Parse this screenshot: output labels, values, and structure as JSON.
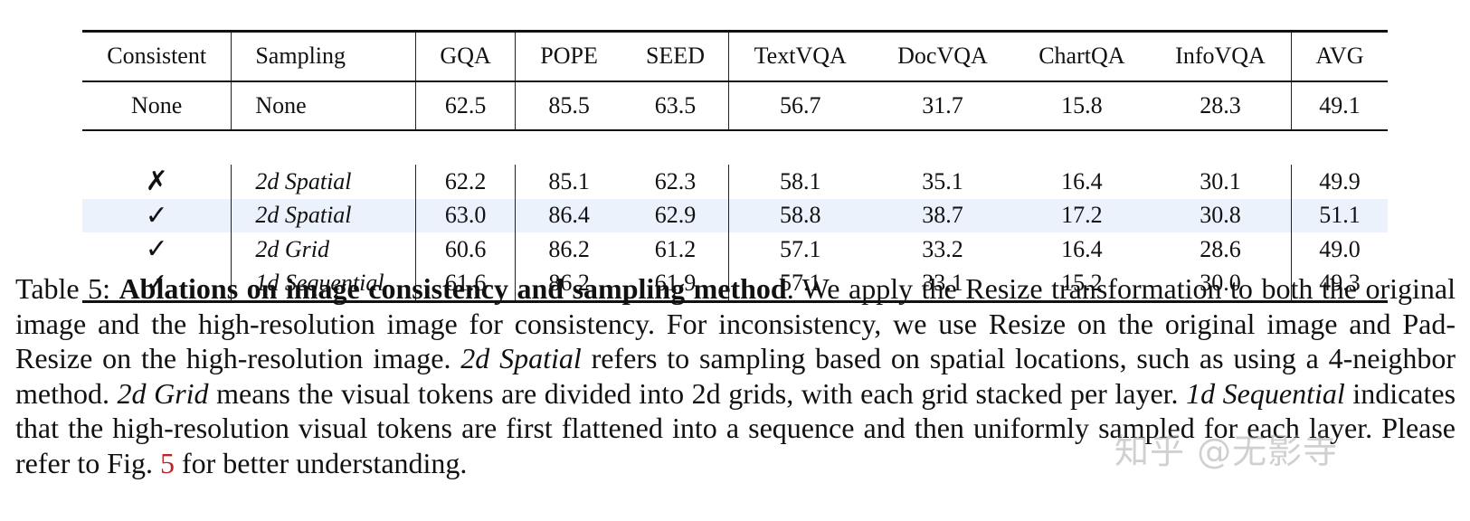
{
  "table": {
    "headers": [
      "Consistent",
      "Sampling",
      "GQA",
      "POPE",
      "SEED",
      "TextVQA",
      "DocVQA",
      "ChartQA",
      "InfoVQA",
      "AVG"
    ],
    "baseline": {
      "consistent": "None",
      "sampling": "None",
      "values": [
        "62.5",
        "85.5",
        "63.5",
        "56.7",
        "31.7",
        "15.8",
        "28.3",
        "49.1"
      ]
    },
    "rows": [
      {
        "consistent": "✗",
        "sampling": "2d Spatial",
        "values": [
          "62.2",
          "85.1",
          "62.3",
          "58.1",
          "35.1",
          "16.4",
          "30.1",
          "49.9"
        ],
        "highlight": false
      },
      {
        "consistent": "✓",
        "sampling": "2d Spatial",
        "values": [
          "63.0",
          "86.4",
          "62.9",
          "58.8",
          "38.7",
          "17.2",
          "30.8",
          "51.1"
        ],
        "highlight": true
      },
      {
        "consistent": "✓",
        "sampling": "2d Grid",
        "values": [
          "60.6",
          "86.2",
          "61.2",
          "57.1",
          "33.2",
          "16.4",
          "28.6",
          "49.0"
        ],
        "highlight": false
      },
      {
        "consistent": "✓",
        "sampling": "1d Sequential",
        "values": [
          "61.6",
          "86.2",
          "61.9",
          "57.1",
          "33.1",
          "15.2",
          "30.0",
          "49.3"
        ],
        "highlight": false
      }
    ],
    "highlight_color": "#ebf2fc"
  },
  "caption": {
    "label": "Table 5:",
    "bold_title": "Ablations on image consistency and sampling method",
    "t1": ". We apply the Resize transformation to both the original image and the high-resolution image for consistency. For inconsistency, we use Resize on the original image and Pad-Resize on the high-resolution image. ",
    "i1": "2d Spatial",
    "t2": " refers to sampling based on spatial locations, such as using a 4-neighbor method. ",
    "i2": "2d Grid",
    "t3": " means the visual tokens are divided into 2d grids, with each grid stacked per layer. ",
    "i3": "1d Sequential",
    "t4": " indicates that the high-resolution visual tokens are first flattened into a sequence and then uniformly sampled for each layer. Please refer to Fig. ",
    "ref": "5",
    "t5": " for better understanding.",
    "ref_color": "#c0242b"
  },
  "watermark": "知乎 @无影寺"
}
